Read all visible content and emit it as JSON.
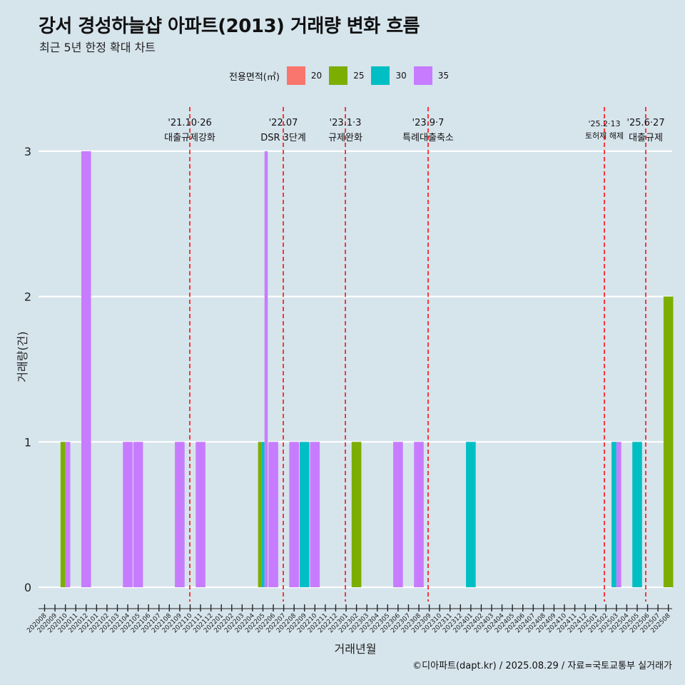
{
  "title": "강서 경성하늘샵 아파트(2013) 거래량 변화 흐름",
  "subtitle": "최근 5년 한정 확대 차트",
  "legend_title": "전용면적(㎡)",
  "caption": "©디아파트(dapt.kr) / 2025.08.29 / 자료=국토교통부 실거래가",
  "colors": {
    "20": "#F8766D",
    "25": "#7CAE00",
    "30": "#00BFC4",
    "35": "#C77CFF",
    "event_line": "#ff0000",
    "grid": "#ffffff",
    "background": "#d6e4ec"
  },
  "chart_data": {
    "type": "bar",
    "xlabel": "거래년월",
    "ylabel": "거래량(건)",
    "ylim": [
      0,
      3
    ],
    "yticks": [
      0,
      1,
      2,
      3
    ],
    "categories": [
      "202008",
      "202009",
      "202010",
      "202011",
      "202012",
      "202101",
      "202102",
      "202103",
      "202104",
      "202105",
      "202106",
      "202107",
      "202108",
      "202109",
      "202110",
      "202111",
      "202112",
      "202201",
      "202202",
      "202203",
      "202204",
      "202205",
      "202206",
      "202207",
      "202208",
      "202209",
      "202210",
      "202211",
      "202212",
      "202301",
      "202302",
      "202303",
      "202304",
      "202305",
      "202306",
      "202307",
      "202308",
      "202309",
      "202310",
      "202311",
      "202312",
      "202401",
      "202402",
      "202403",
      "202404",
      "202405",
      "202406",
      "202407",
      "202408",
      "202409",
      "202410",
      "202411",
      "202412",
      "202501",
      "202502",
      "202503",
      "202504",
      "202505",
      "202506",
      "202507",
      "202508"
    ],
    "series": [
      {
        "name": "20",
        "values": [
          0,
          0,
          0,
          0,
          0,
          0,
          0,
          0,
          0,
          0,
          0,
          0,
          0,
          0,
          0,
          0,
          0,
          0,
          0,
          0,
          0,
          0,
          0,
          0,
          0,
          0,
          0,
          0,
          0,
          0,
          0,
          0,
          0,
          0,
          0,
          0,
          0,
          0,
          0,
          0,
          0,
          0,
          0,
          0,
          0,
          0,
          0,
          0,
          0,
          0,
          0,
          0,
          0,
          0,
          0,
          0,
          0,
          0,
          0,
          0,
          0
        ]
      },
      {
        "name": "25",
        "values": [
          0,
          0,
          1,
          0,
          0,
          0,
          0,
          0,
          0,
          0,
          0,
          0,
          0,
          0,
          0,
          0,
          0,
          0,
          0,
          0,
          0,
          1,
          0,
          0,
          0,
          0,
          0,
          0,
          0,
          0,
          1,
          0,
          0,
          0,
          0,
          0,
          0,
          0,
          0,
          0,
          0,
          0,
          0,
          0,
          0,
          0,
          0,
          0,
          0,
          0,
          0,
          0,
          0,
          0,
          0,
          0,
          0,
          0,
          0,
          0,
          2
        ]
      },
      {
        "name": "30",
        "values": [
          0,
          0,
          0,
          0,
          0,
          0,
          0,
          0,
          0,
          0,
          0,
          0,
          0,
          0,
          0,
          0,
          0,
          0,
          0,
          0,
          0,
          1,
          0,
          0,
          0,
          1,
          0,
          0,
          0,
          0,
          0,
          0,
          0,
          0,
          0,
          0,
          0,
          0,
          0,
          0,
          0,
          1,
          0,
          0,
          0,
          0,
          0,
          0,
          0,
          0,
          0,
          0,
          0,
          0,
          0,
          1,
          0,
          1,
          0,
          0,
          0
        ]
      },
      {
        "name": "35",
        "values": [
          0,
          0,
          1,
          0,
          3,
          0,
          0,
          0,
          1,
          1,
          0,
          0,
          0,
          1,
          0,
          1,
          0,
          0,
          0,
          0,
          0,
          3,
          1,
          0,
          1,
          0,
          1,
          0,
          0,
          0,
          0,
          0,
          0,
          0,
          1,
          0,
          1,
          0,
          0,
          0,
          0,
          0,
          0,
          0,
          0,
          0,
          0,
          0,
          0,
          0,
          0,
          0,
          0,
          0,
          0,
          1,
          0,
          0,
          0,
          0,
          0
        ]
      }
    ],
    "events": [
      {
        "date": "'21.10·26",
        "label": "대출규제강화"
      },
      {
        "date": "'22.07",
        "label": "DSR 3단계"
      },
      {
        "date": "'23.1·3",
        "label": "규제완화"
      },
      {
        "date": "'23.9·7",
        "label": "특례대출축소"
      },
      {
        "date": "'25.2·13",
        "label": "토허제 해제"
      },
      {
        "date": "'25.6·27",
        "label": "대출규제"
      }
    ]
  }
}
